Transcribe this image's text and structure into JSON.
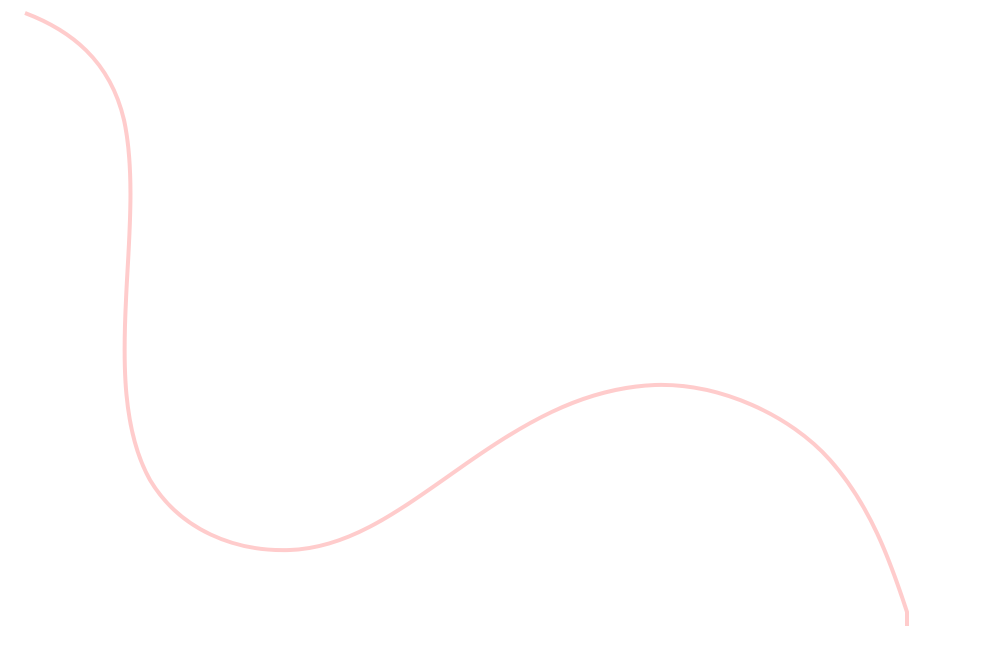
{
  "canvas": {
    "background_color": "#ffffff",
    "curve_color": "#ffcccc"
  }
}
